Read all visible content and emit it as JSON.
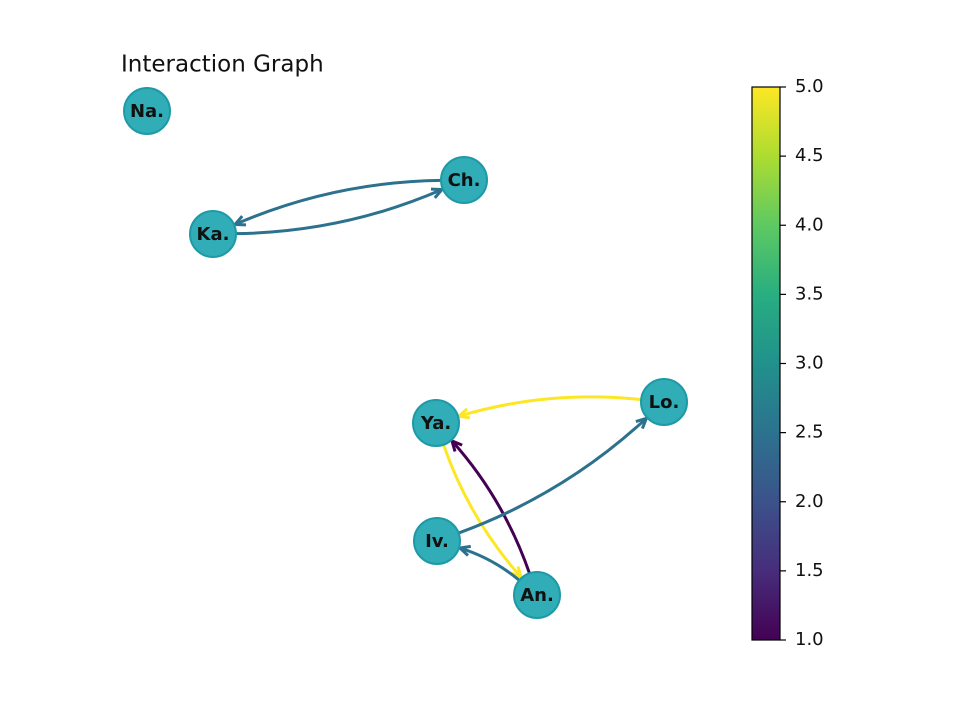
{
  "title": "Interaction Graph",
  "nodes": [
    {
      "label": "Na."
    },
    {
      "label": "Ch."
    },
    {
      "label": "Ka."
    },
    {
      "label": "Lo."
    },
    {
      "label": "Ya."
    },
    {
      "label": "Iv."
    },
    {
      "label": "An."
    }
  ],
  "edges": [
    {
      "source": "Ka.",
      "target": "Ch.",
      "weight": 2.5
    },
    {
      "source": "Ch.",
      "target": "Ka.",
      "weight": 2.5
    },
    {
      "source": "Lo.",
      "target": "Ya.",
      "weight": 5
    },
    {
      "source": "Ya.",
      "target": "An.",
      "weight": 5
    },
    {
      "source": "An.",
      "target": "Ya.",
      "weight": 1
    },
    {
      "source": "Iv.",
      "target": "Lo.",
      "weight": 2.5
    },
    {
      "source": "An.",
      "target": "Iv.",
      "weight": 2.5
    }
  ],
  "colorbar": {
    "colormap": "viridis",
    "lim": [
      1,
      5
    ],
    "ticks": [
      {
        "value": 1,
        "label": "1.0"
      },
      {
        "value": 1.5,
        "label": "1.5"
      },
      {
        "value": 2,
        "label": "2.0"
      },
      {
        "value": 2.5,
        "label": "2.5"
      },
      {
        "value": 3,
        "label": "3.0"
      },
      {
        "value": 3.5,
        "label": "3.5"
      },
      {
        "value": 4,
        "label": "4.0"
      },
      {
        "value": 4.5,
        "label": "4.5"
      },
      {
        "value": 5,
        "label": "5.0"
      }
    ]
  }
}
